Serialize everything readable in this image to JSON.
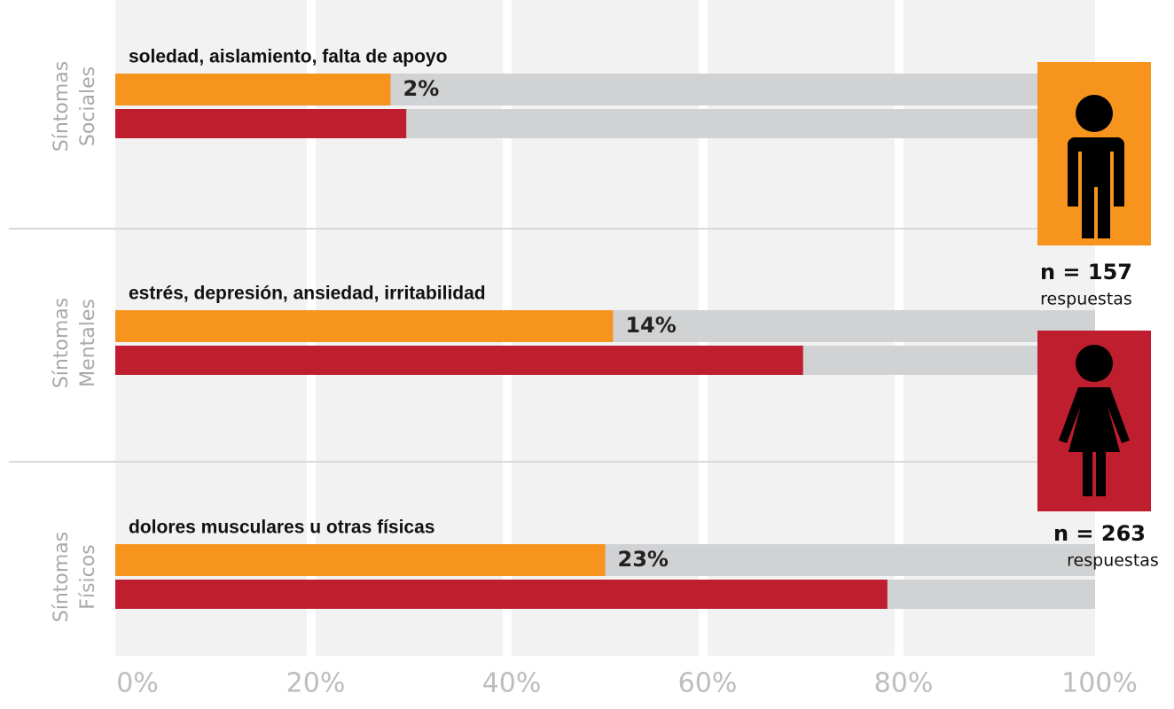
{
  "chart_data": {
    "type": "bar",
    "orientation": "horizontal",
    "categories": [
      "soledad, aislamiento, falta de apoyo",
      "estrés, depresión, ansiedad, irritabilidad",
      "dolores musculares u otras físicas"
    ],
    "group_labels": [
      [
        "Síntomas",
        "Sociales"
      ],
      [
        "Síntomas",
        "Mentales"
      ],
      [
        "Síntomas",
        "Físicos"
      ]
    ],
    "annotations": [
      "2%",
      "14%",
      "23%"
    ],
    "series": [
      {
        "name": "n = 157",
        "caption": "respuestas",
        "color": "#f7941d",
        "values": [
          28.1,
          50.8,
          50.0
        ]
      },
      {
        "name": "n = 263",
        "caption": "respuestas",
        "color": "#be1e2d",
        "values": [
          29.7,
          70.2,
          78.8
        ]
      }
    ],
    "track_color": "#d1d2d4",
    "xlim": [
      0,
      100
    ],
    "xticks": [
      {
        "value": 0,
        "label": "0%"
      },
      {
        "value": 20,
        "label": "20%"
      },
      {
        "value": 40,
        "label": "40%"
      },
      {
        "value": 60,
        "label": "60%"
      },
      {
        "value": 80,
        "label": "80%"
      },
      {
        "value": 100,
        "label": "100%"
      }
    ],
    "grid": true
  }
}
